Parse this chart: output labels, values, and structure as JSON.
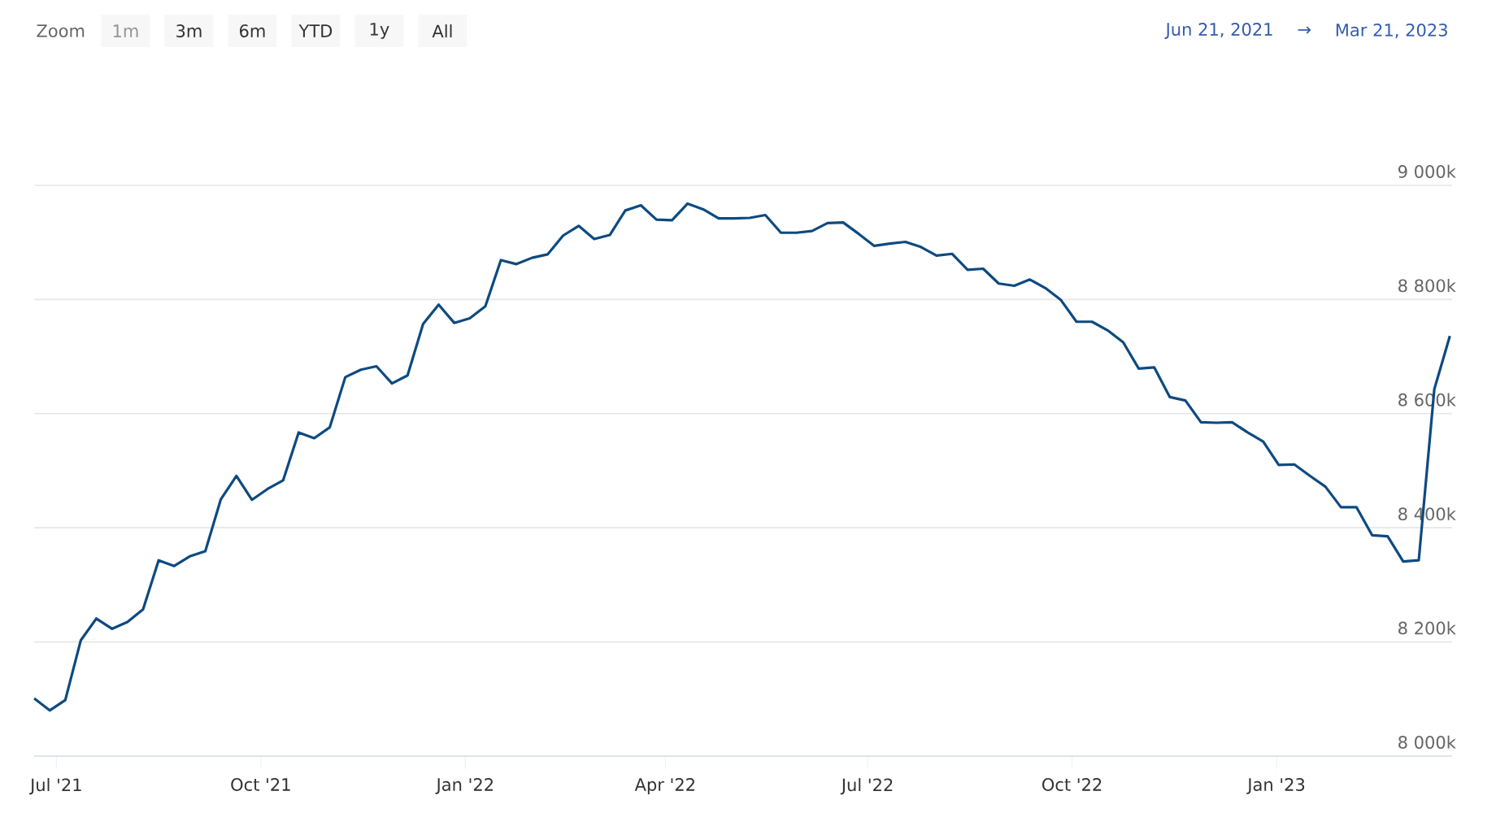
{
  "chart_data": {
    "type": "line",
    "color": "#0d4a80",
    "x": [
      "2021-06-21",
      "2021-06-28",
      "2021-07-05",
      "2021-07-12",
      "2021-07-19",
      "2021-07-26",
      "2021-08-02",
      "2021-08-09",
      "2021-08-16",
      "2021-08-23",
      "2021-08-30",
      "2021-09-06",
      "2021-09-13",
      "2021-09-20",
      "2021-09-27",
      "2021-10-04",
      "2021-10-11",
      "2021-10-18",
      "2021-10-25",
      "2021-11-01",
      "2021-11-08",
      "2021-11-15",
      "2021-11-22",
      "2021-11-29",
      "2021-12-06",
      "2021-12-13",
      "2021-12-20",
      "2021-12-27",
      "2022-01-03",
      "2022-01-10",
      "2022-01-17",
      "2022-01-24",
      "2022-01-31",
      "2022-02-07",
      "2022-02-14",
      "2022-02-21",
      "2022-02-28",
      "2022-03-07",
      "2022-03-14",
      "2022-03-21",
      "2022-03-28",
      "2022-04-04",
      "2022-04-11",
      "2022-04-18",
      "2022-04-25",
      "2022-05-02",
      "2022-05-09",
      "2022-05-16",
      "2022-05-23",
      "2022-05-30",
      "2022-06-06",
      "2022-06-13",
      "2022-06-20",
      "2022-06-27",
      "2022-07-04",
      "2022-07-11",
      "2022-07-18",
      "2022-07-25",
      "2022-08-01",
      "2022-08-08",
      "2022-08-15",
      "2022-08-22",
      "2022-08-29",
      "2022-09-05",
      "2022-09-12",
      "2022-09-19",
      "2022-09-26",
      "2022-10-03",
      "2022-10-10",
      "2022-10-17",
      "2022-10-24",
      "2022-10-31",
      "2022-11-07",
      "2022-11-14",
      "2022-11-21",
      "2022-11-28",
      "2022-12-05",
      "2022-12-12",
      "2022-12-19",
      "2022-12-26",
      "2023-01-02",
      "2023-01-09",
      "2023-01-16",
      "2023-01-23",
      "2023-01-30",
      "2023-02-06",
      "2023-02-13",
      "2023-02-20",
      "2023-02-27",
      "2023-03-06",
      "2023-03-13",
      "2023-03-20"
    ],
    "values": [
      8101,
      8080,
      8098,
      8203,
      8241,
      8223,
      8235,
      8257,
      8343,
      8333,
      8350,
      8359,
      8450,
      8491,
      8449,
      8468,
      8483,
      8567,
      8557,
      8576,
      8664,
      8677,
      8683,
      8653,
      8667,
      8757,
      8791,
      8759,
      8767,
      8788,
      8869,
      8862,
      8873,
      8879,
      8912,
      8929,
      8906,
      8913,
      8956,
      8965,
      8940,
      8939,
      8968,
      8958,
      8942,
      8942,
      8943,
      8948,
      8917,
      8917,
      8920,
      8934,
      8935,
      8915,
      8894,
      8898,
      8901,
      8892,
      8877,
      8880,
      8852,
      8854,
      8828,
      8824,
      8835,
      8820,
      8799,
      8761,
      8761,
      8746,
      8725,
      8679,
      8681,
      8629,
      8623,
      8585,
      8584,
      8585,
      8567,
      8551,
      8510,
      8511,
      8491,
      8472,
      8436,
      8436,
      8387,
      8385,
      8341,
      8343,
      8643,
      8736
    ],
    "xlim": [
      "2021-06-21",
      "2023-03-21"
    ],
    "xticks": [
      {
        "value": "2021-07-01",
        "label": "Jul '21"
      },
      {
        "value": "2021-10-01",
        "label": "Oct '21"
      },
      {
        "value": "2022-01-01",
        "label": "Jan '22"
      },
      {
        "value": "2022-04-01",
        "label": "Apr '22"
      },
      {
        "value": "2022-07-01",
        "label": "Jul '22"
      },
      {
        "value": "2022-10-01",
        "label": "Oct '22"
      },
      {
        "value": "2023-01-01",
        "label": "Jan '23"
      }
    ],
    "ylim": [
      8000,
      9000
    ],
    "yticks": [
      {
        "value": 8000,
        "label": "8 000k"
      },
      {
        "value": 8200,
        "label": "8 200k"
      },
      {
        "value": 8400,
        "label": "8 400k"
      },
      {
        "value": 8600,
        "label": "8 600k"
      },
      {
        "value": 8800,
        "label": "8 800k"
      },
      {
        "value": 9000,
        "label": "9 000k"
      }
    ],
    "grid": "y",
    "annotations": [
      "Zoom",
      "1m",
      "3m",
      "6m",
      "YTD",
      "1y",
      "All",
      "Jun 21, 2021",
      "→",
      "Mar 21, 2023"
    ]
  }
}
